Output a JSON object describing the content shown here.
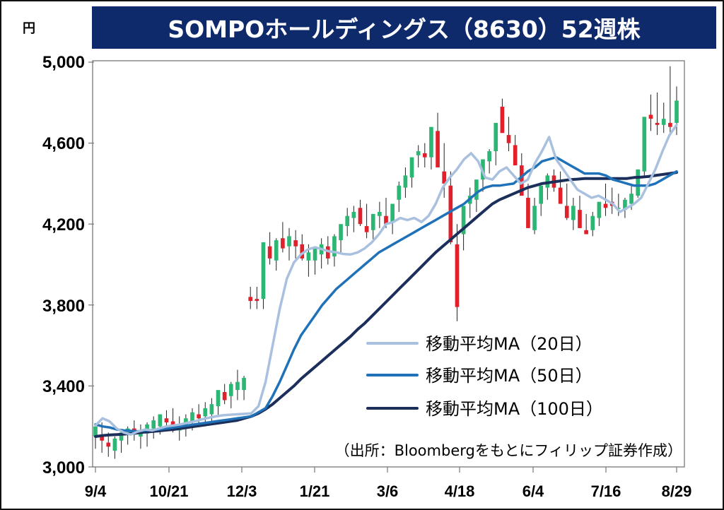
{
  "colors": {
    "up": "#2bb673",
    "down": "#e0202a",
    "ma20": "#a9c0df",
    "ma50": "#1f72b8",
    "ma100": "#1b2f5a",
    "title_bg": "#0f2a6b"
  },
  "chart_data": {
    "type": "candlestick",
    "title": "SOMPOホールディングス（8630）52週株",
    "unit": "円",
    "ylim": [
      3000,
      5000
    ],
    "yticks": [
      3000,
      3400,
      3800,
      4200,
      4600,
      5000
    ],
    "ytick_labels": [
      "3,000",
      "3,400",
      "3,800",
      "4,200",
      "4,600",
      "5,000"
    ],
    "xtick_labels": [
      "9/4",
      "10/21",
      "12/3",
      "1/21",
      "3/6",
      "4/18",
      "6/4",
      "7/16",
      "8/29"
    ],
    "grid": false,
    "legend_position": "lower-right",
    "source": "（出所：Bloombergをもとにフィリップ証券作成）",
    "series": [
      {
        "name": "移動平均MA（20日）",
        "kind": "ma20",
        "values": [
          3205,
          3240,
          3225,
          3190,
          3170,
          3160,
          3175,
          3185,
          3180,
          3190,
          3200,
          3205,
          3210,
          3218,
          3225,
          3235,
          3243,
          3250,
          3255,
          3258,
          3260,
          3262,
          3265,
          3300,
          3420,
          3600,
          3780,
          3930,
          4010,
          4050,
          4075,
          4085,
          4075,
          4065,
          4060,
          4052,
          4050,
          4060,
          4080,
          4110,
          4150,
          4200,
          4210,
          4230,
          4220,
          4230,
          4210,
          4240,
          4300,
          4380,
          4430,
          4470,
          4520,
          4550,
          4510,
          4430,
          4420,
          4460,
          4480,
          4440,
          4400,
          4420,
          4500,
          4560,
          4630,
          4520,
          4470,
          4420,
          4370,
          4350,
          4330,
          4340,
          4320,
          4300,
          4260,
          4280,
          4300,
          4330,
          4400,
          4470,
          4560,
          4640,
          4690
        ]
      },
      {
        "name": "移動平均MA（50日）",
        "kind": "ma50",
        "values": [
          3210,
          3200,
          3195,
          3185,
          3180,
          3178,
          3176,
          3180,
          3182,
          3185,
          3190,
          3195,
          3200,
          3205,
          3210,
          3215,
          3220,
          3225,
          3230,
          3235,
          3240,
          3245,
          3250,
          3270,
          3290,
          3350,
          3420,
          3500,
          3580,
          3650,
          3700,
          3750,
          3800,
          3840,
          3880,
          3910,
          3940,
          3970,
          4000,
          4030,
          4060,
          4080,
          4100,
          4120,
          4140,
          4160,
          4180,
          4200,
          4220,
          4240,
          4260,
          4280,
          4300,
          4330,
          4360,
          4380,
          4390,
          4390,
          4395,
          4400,
          4430,
          4460,
          4480,
          4510,
          4520,
          4530,
          4510,
          4490,
          4470,
          4450,
          4450,
          4450,
          4440,
          4420,
          4410,
          4400,
          4390,
          4390,
          4390,
          4400,
          4420,
          4440,
          4460
        ]
      },
      {
        "name": "移動平均MA（100日）",
        "kind": "ma100",
        "values": [
          3150,
          3155,
          3158,
          3160,
          3162,
          3165,
          3168,
          3172,
          3175,
          3178,
          3182,
          3185,
          3190,
          3195,
          3200,
          3205,
          3210,
          3215,
          3220,
          3225,
          3230,
          3240,
          3250,
          3265,
          3285,
          3310,
          3340,
          3370,
          3400,
          3435,
          3465,
          3495,
          3525,
          3555,
          3585,
          3615,
          3645,
          3680,
          3710,
          3745,
          3780,
          3815,
          3850,
          3885,
          3920,
          3955,
          3990,
          4025,
          4060,
          4090,
          4120,
          4150,
          4180,
          4210,
          4240,
          4270,
          4300,
          4320,
          4335,
          4350,
          4365,
          4380,
          4390,
          4400,
          4405,
          4410,
          4415,
          4420,
          4422,
          4425,
          4425,
          4425,
          4425,
          4425,
          4425,
          4425,
          4430,
          4432,
          4435,
          4440,
          4445,
          4450,
          4455
        ]
      }
    ],
    "candles": {
      "open": [
        3150,
        3160,
        3120,
        3080,
        3130,
        3160,
        3190,
        3150,
        3165,
        3190,
        3200,
        3240,
        3225,
        3180,
        3195,
        3220,
        3260,
        3250,
        3260,
        3300,
        3370,
        3350,
        3380,
        3380,
        3840,
        3830,
        3830,
        4090,
        4020,
        4130,
        4090,
        4120,
        4100,
        4020,
        4020,
        4050,
        4090,
        4040,
        4120,
        4190,
        4230,
        4280,
        4190,
        4170,
        4240,
        4240,
        4210,
        4320,
        4380,
        4430,
        4540,
        4550,
        4530,
        4660,
        4460,
        4390,
        4100,
        4150,
        4300,
        4320,
        4420,
        4510,
        4560,
        4780,
        4640,
        4590,
        4490,
        4330,
        4170,
        4300,
        4380,
        4440,
        4380,
        4290,
        4220,
        4270,
        4170,
        4170,
        4230,
        4300,
        4310,
        4280,
        4270,
        4300,
        4340,
        4460,
        4740,
        4700,
        4690,
        4700,
        4700
      ],
      "high": [
        3200,
        3220,
        3170,
        3150,
        3180,
        3200,
        3230,
        3210,
        3220,
        3250,
        3260,
        3280,
        3290,
        3250,
        3260,
        3290,
        3310,
        3320,
        3340,
        3360,
        3410,
        3420,
        3480,
        3450,
        3890,
        3890,
        3900,
        4160,
        4130,
        4210,
        4180,
        4170,
        4150,
        4100,
        4090,
        4130,
        4140,
        4150,
        4190,
        4280,
        4290,
        4320,
        4300,
        4250,
        4310,
        4330,
        4300,
        4410,
        4480,
        4520,
        4590,
        4600,
        4600,
        4750,
        4600,
        4460,
        4200,
        4200,
        4380,
        4380,
        4490,
        4570,
        4640,
        4820,
        4730,
        4640,
        4550,
        4400,
        4330,
        4390,
        4450,
        4470,
        4460,
        4400,
        4330,
        4340,
        4250,
        4260,
        4290,
        4400,
        4380,
        4350,
        4330,
        4400,
        4470,
        4650,
        4840,
        4850,
        4800,
        4980,
        4880
      ],
      "low": [
        3090,
        3070,
        3050,
        3040,
        3070,
        3110,
        3130,
        3090,
        3100,
        3140,
        3160,
        3190,
        3170,
        3130,
        3150,
        3180,
        3210,
        3200,
        3220,
        3250,
        3310,
        3290,
        3330,
        3330,
        3780,
        3780,
        3780,
        4000,
        3970,
        4060,
        4020,
        4030,
        4020,
        3940,
        3950,
        3980,
        4000,
        3990,
        4050,
        4140,
        4160,
        4190,
        4130,
        4120,
        4180,
        4180,
        4150,
        4260,
        4330,
        4380,
        4480,
        4480,
        4470,
        4580,
        4330,
        4100,
        3720,
        4070,
        4230,
        4260,
        4360,
        4450,
        4490,
        4700,
        4560,
        4500,
        4400,
        4200,
        4150,
        4240,
        4320,
        4360,
        4300,
        4220,
        4170,
        4180,
        4150,
        4140,
        4190,
        4240,
        4250,
        4240,
        4230,
        4270,
        4330,
        4440,
        4660,
        4640,
        4650,
        4650,
        4640
      ],
      "close": [
        3200,
        3130,
        3100,
        3140,
        3170,
        3190,
        3160,
        3180,
        3210,
        3230,
        3260,
        3220,
        3190,
        3210,
        3240,
        3270,
        3240,
        3290,
        3310,
        3380,
        3330,
        3410,
        3420,
        3440,
        3820,
        3820,
        4110,
        4030,
        4120,
        4080,
        4140,
        4090,
        4030,
        4060,
        4080,
        4100,
        4030,
        4140,
        4200,
        4240,
        4260,
        4200,
        4160,
        4250,
        4260,
        4200,
        4300,
        4390,
        4440,
        4530,
        4560,
        4530,
        4680,
        4480,
        4400,
        4110,
        3790,
        4290,
        4340,
        4420,
        4520,
        4560,
        4700,
        4650,
        4600,
        4490,
        4340,
        4180,
        4290,
        4390,
        4440,
        4380,
        4300,
        4230,
        4290,
        4180,
        4150,
        4240,
        4310,
        4280,
        4290,
        4280,
        4320,
        4350,
        4470,
        4730,
        4720,
        4690,
        4720,
        4680,
        4810
      ]
    },
    "axis_extras": {
      "x_title": "",
      "y_title": ""
    }
  }
}
